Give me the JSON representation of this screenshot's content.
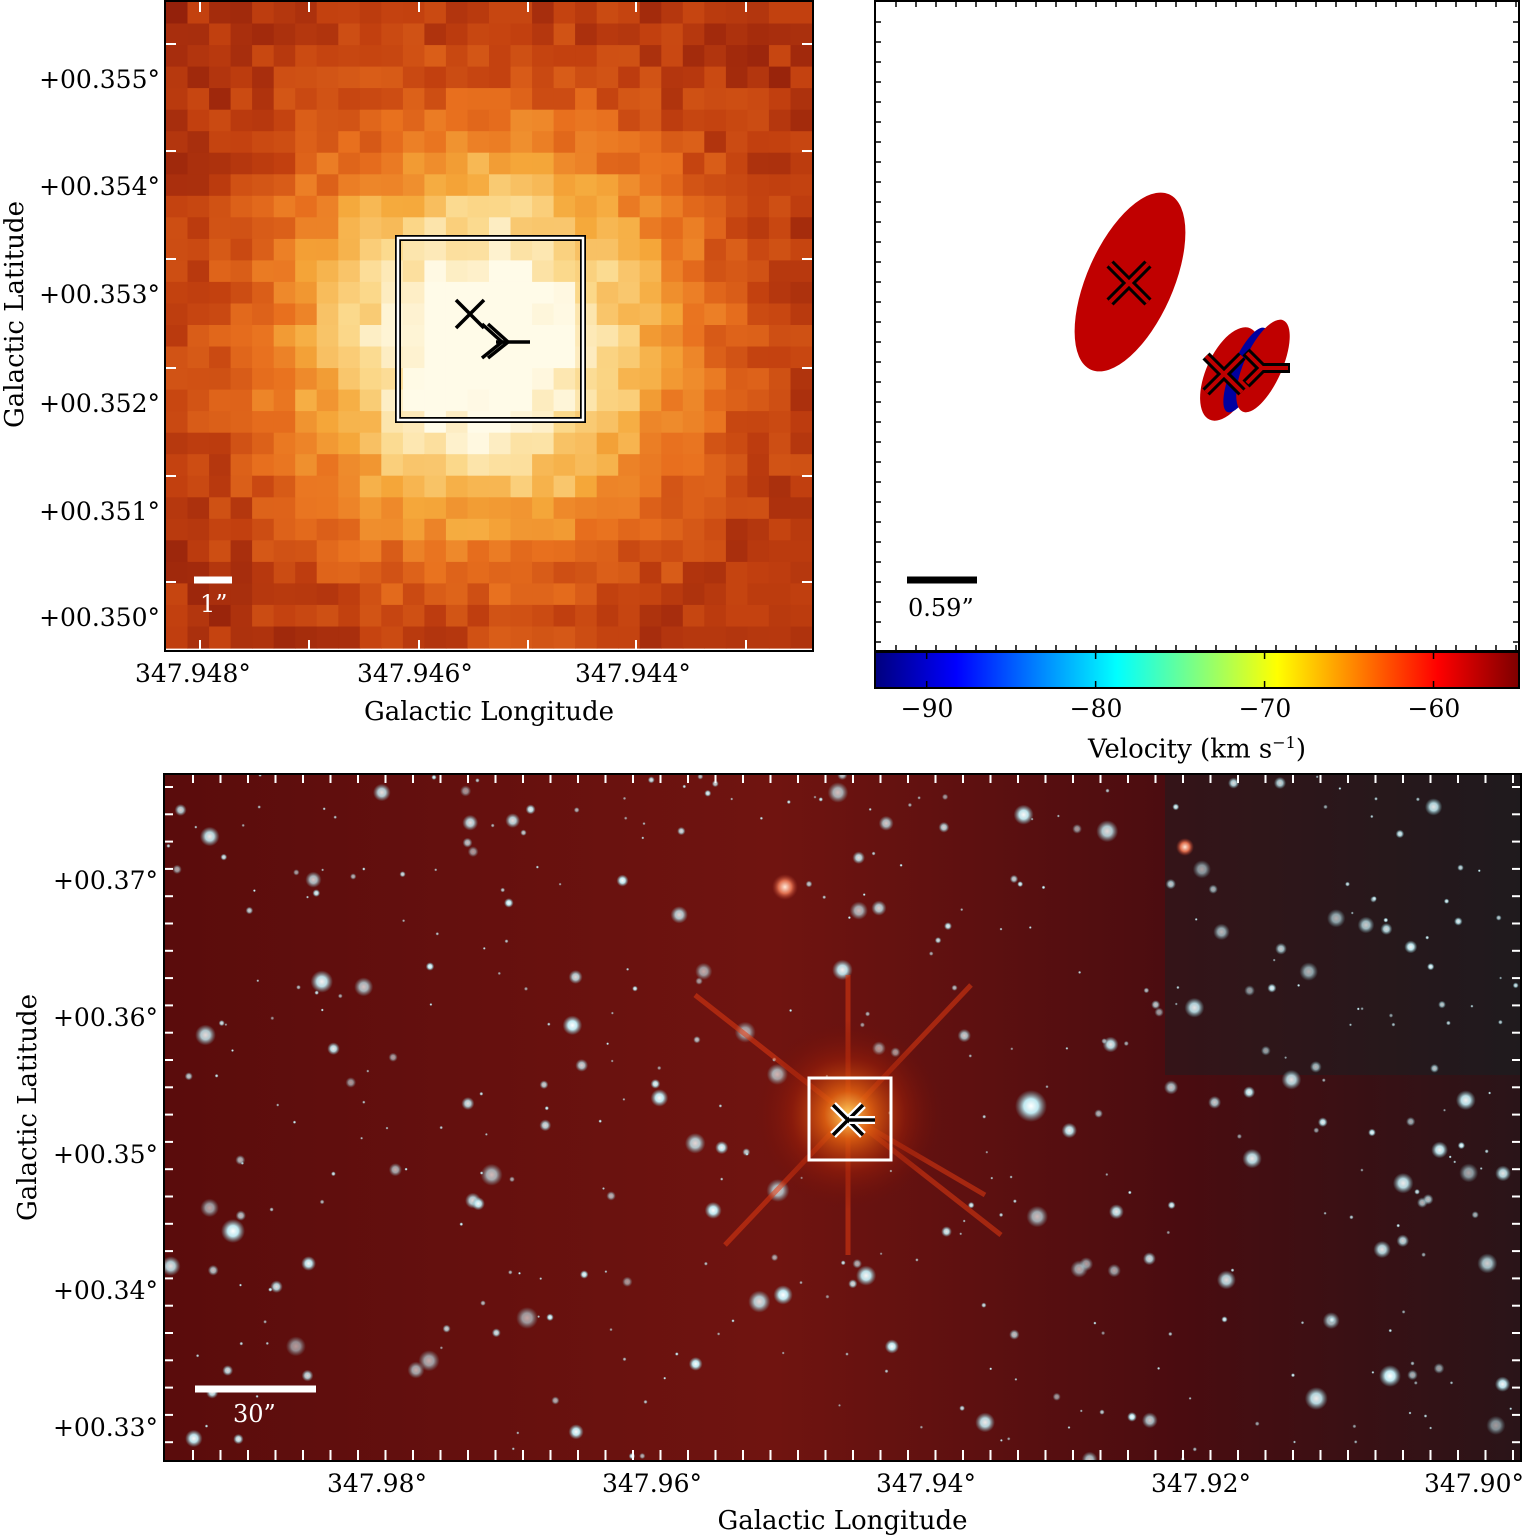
{
  "top_left": {
    "xlabel": "Galactic Longitude",
    "ylabel": "Galactic Latitude",
    "xticks": [
      "347.948°",
      "347.946°",
      "347.944°"
    ],
    "yticks": [
      "+00.355°",
      "+00.354°",
      "+00.353°",
      "+00.352°",
      "+00.351°",
      "+00.350°"
    ],
    "scale_bar_label": "1”",
    "colormap": [
      "#8a1a0a",
      "#c2400f",
      "#e8701e",
      "#f5a83a",
      "#fbd88a",
      "#fffbe8"
    ]
  },
  "top_right": {
    "scale_bar_label": "0.59”",
    "colorbar": {
      "label": "Velocity (km s",
      "label_exp": "−1",
      "label_end": ")",
      "ticks": [
        "−90",
        "−80",
        "−70",
        "−60"
      ],
      "range": [
        -93,
        -55
      ],
      "colors": [
        "#00007f",
        "#0000ff",
        "#0080ff",
        "#00ffff",
        "#80ff80",
        "#ffff00",
        "#ff8000",
        "#ff0000",
        "#7f0000"
      ]
    },
    "maser_spots": [
      {
        "velocity": -57,
        "color": "#c00000"
      },
      {
        "velocity": -57,
        "color": "#c00000"
      },
      {
        "velocity": -92,
        "color": "#0000a0"
      },
      {
        "velocity": -57,
        "color": "#c00000"
      }
    ]
  },
  "bottom": {
    "xlabel": "Galactic Longitude",
    "ylabel": "Galactic Latitude",
    "xticks": [
      "347.98°",
      "347.96°",
      "347.94°",
      "347.92°",
      "347.90°"
    ],
    "yticks": [
      "+00.37°",
      "+00.36°",
      "+00.35°",
      "+00.34°",
      "+00.33°"
    ],
    "scale_bar_label": "30”"
  }
}
